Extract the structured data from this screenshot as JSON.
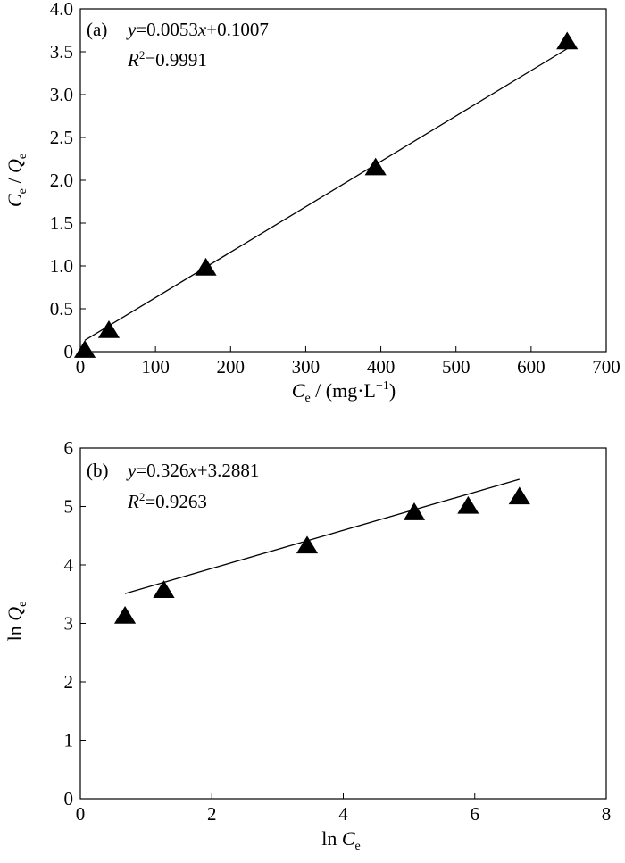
{
  "chart_data": [
    {
      "panel_label": "(a)",
      "type": "scatter",
      "fit_line": {
        "slope": 0.0053,
        "intercept": 0.1007
      },
      "equation": {
        "y": "y",
        "rhs": "=0.0053",
        "x": "x",
        "tail": "+0.1007"
      },
      "r2": {
        "R": "R",
        "sup": "2",
        "value": "=0.9991"
      },
      "points": [
        {
          "x": 6,
          "y": 0.02
        },
        {
          "x": 38,
          "y": 0.25
        },
        {
          "x": 167,
          "y": 0.98
        },
        {
          "x": 393,
          "y": 2.15
        },
        {
          "x": 648,
          "y": 3.62
        }
      ],
      "xlim": [
        0,
        700
      ],
      "ylim": [
        0,
        4.0
      ],
      "xticks": [
        "0",
        "100",
        "200",
        "300",
        "400",
        "500",
        "600",
        "700"
      ],
      "yticks": [
        "0",
        "0.5",
        "1.0",
        "1.5",
        "2.0",
        "2.5",
        "3.0",
        "3.5",
        "4.0"
      ],
      "xlabel": {
        "main": "C",
        "sub": "e",
        "rest": " / (mg·L",
        "sup": "−1",
        "close": ")"
      },
      "ylabel": {
        "c": "C",
        "csub": "e",
        "slash": " / ",
        "q": "Q",
        "qsub": "e"
      }
    },
    {
      "panel_label": "(b)",
      "type": "scatter",
      "fit_line": {
        "slope": 0.326,
        "intercept": 3.2881
      },
      "equation": {
        "y": "y",
        "rhs": "=0.326",
        "x": "x",
        "tail": "+3.2881"
      },
      "r2": {
        "R": "R",
        "sup": "2",
        "value": "=0.9263"
      },
      "points": [
        {
          "x": 0.68,
          "y": 3.13
        },
        {
          "x": 1.27,
          "y": 3.57
        },
        {
          "x": 3.45,
          "y": 4.33
        },
        {
          "x": 5.08,
          "y": 4.9
        },
        {
          "x": 5.9,
          "y": 5.01
        },
        {
          "x": 6.68,
          "y": 5.17
        }
      ],
      "xlim": [
        0,
        8
      ],
      "ylim": [
        0,
        6
      ],
      "xticks": [
        "0",
        "2",
        "4",
        "6",
        "8"
      ],
      "yticks": [
        "0",
        "1",
        "2",
        "3",
        "4",
        "5",
        "6"
      ],
      "xlabel": {
        "pre": "ln ",
        "main": "C",
        "sub": "e"
      },
      "ylabel": {
        "pre": "ln ",
        "q": "Q",
        "qsub": "e"
      }
    }
  ]
}
